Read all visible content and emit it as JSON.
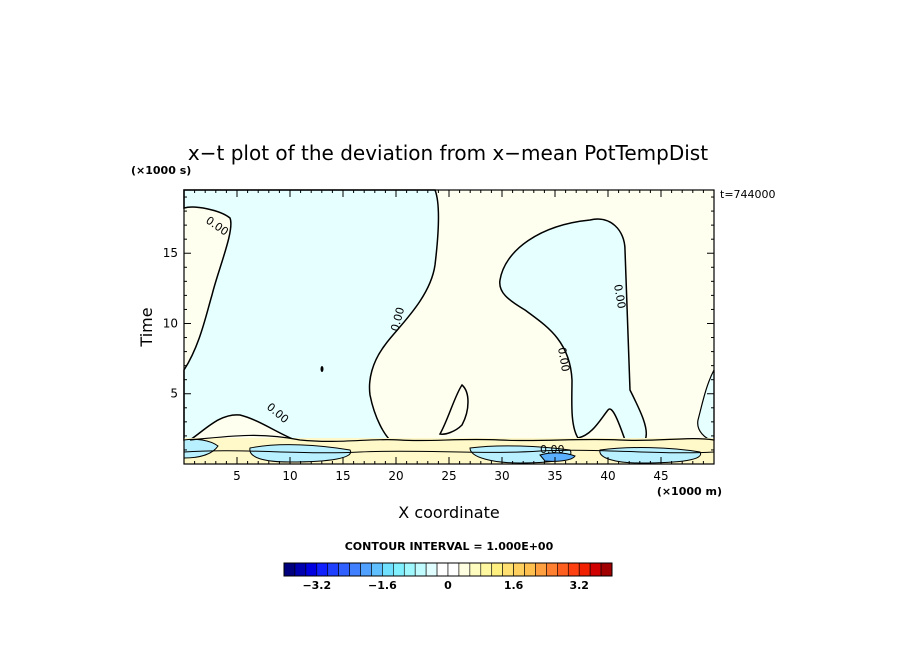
{
  "chart_data": {
    "type": "heatmap",
    "title": "x−t plot of the deviation from x−mean PotTempDist",
    "xlabel": "X coordinate",
    "ylabel": "Time",
    "x_unit": "(×1000 m)",
    "y_unit": "(×1000 s)",
    "time_stamp": "t=744000",
    "xlim": [
      0,
      50
    ],
    "ylim": [
      0,
      19.5
    ],
    "x_ticks": [
      5,
      10,
      15,
      20,
      25,
      30,
      35,
      40,
      45
    ],
    "y_ticks": [
      5,
      10,
      15
    ],
    "contour_interval_text": "CONTOUR INTERVAL = 1.000E+00",
    "contour_labels": [
      "0.00",
      "0.00",
      "0.00",
      "0.00",
      "0.00",
      "0.00"
    ],
    "colorbar": {
      "range": [
        -4,
        4
      ],
      "tick_values": [
        -3.2,
        -1.6,
        0,
        1.6,
        3.2
      ],
      "tick_labels": [
        "−3.2",
        "−1.6",
        "0",
        "1.6",
        "3.2"
      ],
      "colors": [
        "#00007f",
        "#0000b0",
        "#0000e0",
        "#1020ff",
        "#2040ff",
        "#3060ff",
        "#4080ff",
        "#50a0ff",
        "#60c0ff",
        "#70e0ff",
        "#80f0ff",
        "#a0f8ff",
        "#c0fcff",
        "#e0feff",
        "#ffffff",
        "#ffffff",
        "#fffee0",
        "#fffcc0",
        "#fff8a0",
        "#fff080",
        "#ffe070",
        "#ffd060",
        "#ffc050",
        "#ffa040",
        "#ff8030",
        "#ff6020",
        "#ff4010",
        "#f02000",
        "#d00000",
        "#a00000"
      ]
    },
    "regions": {
      "negative_color": "#e6ffff",
      "positive_color": "#fffff0"
    }
  }
}
